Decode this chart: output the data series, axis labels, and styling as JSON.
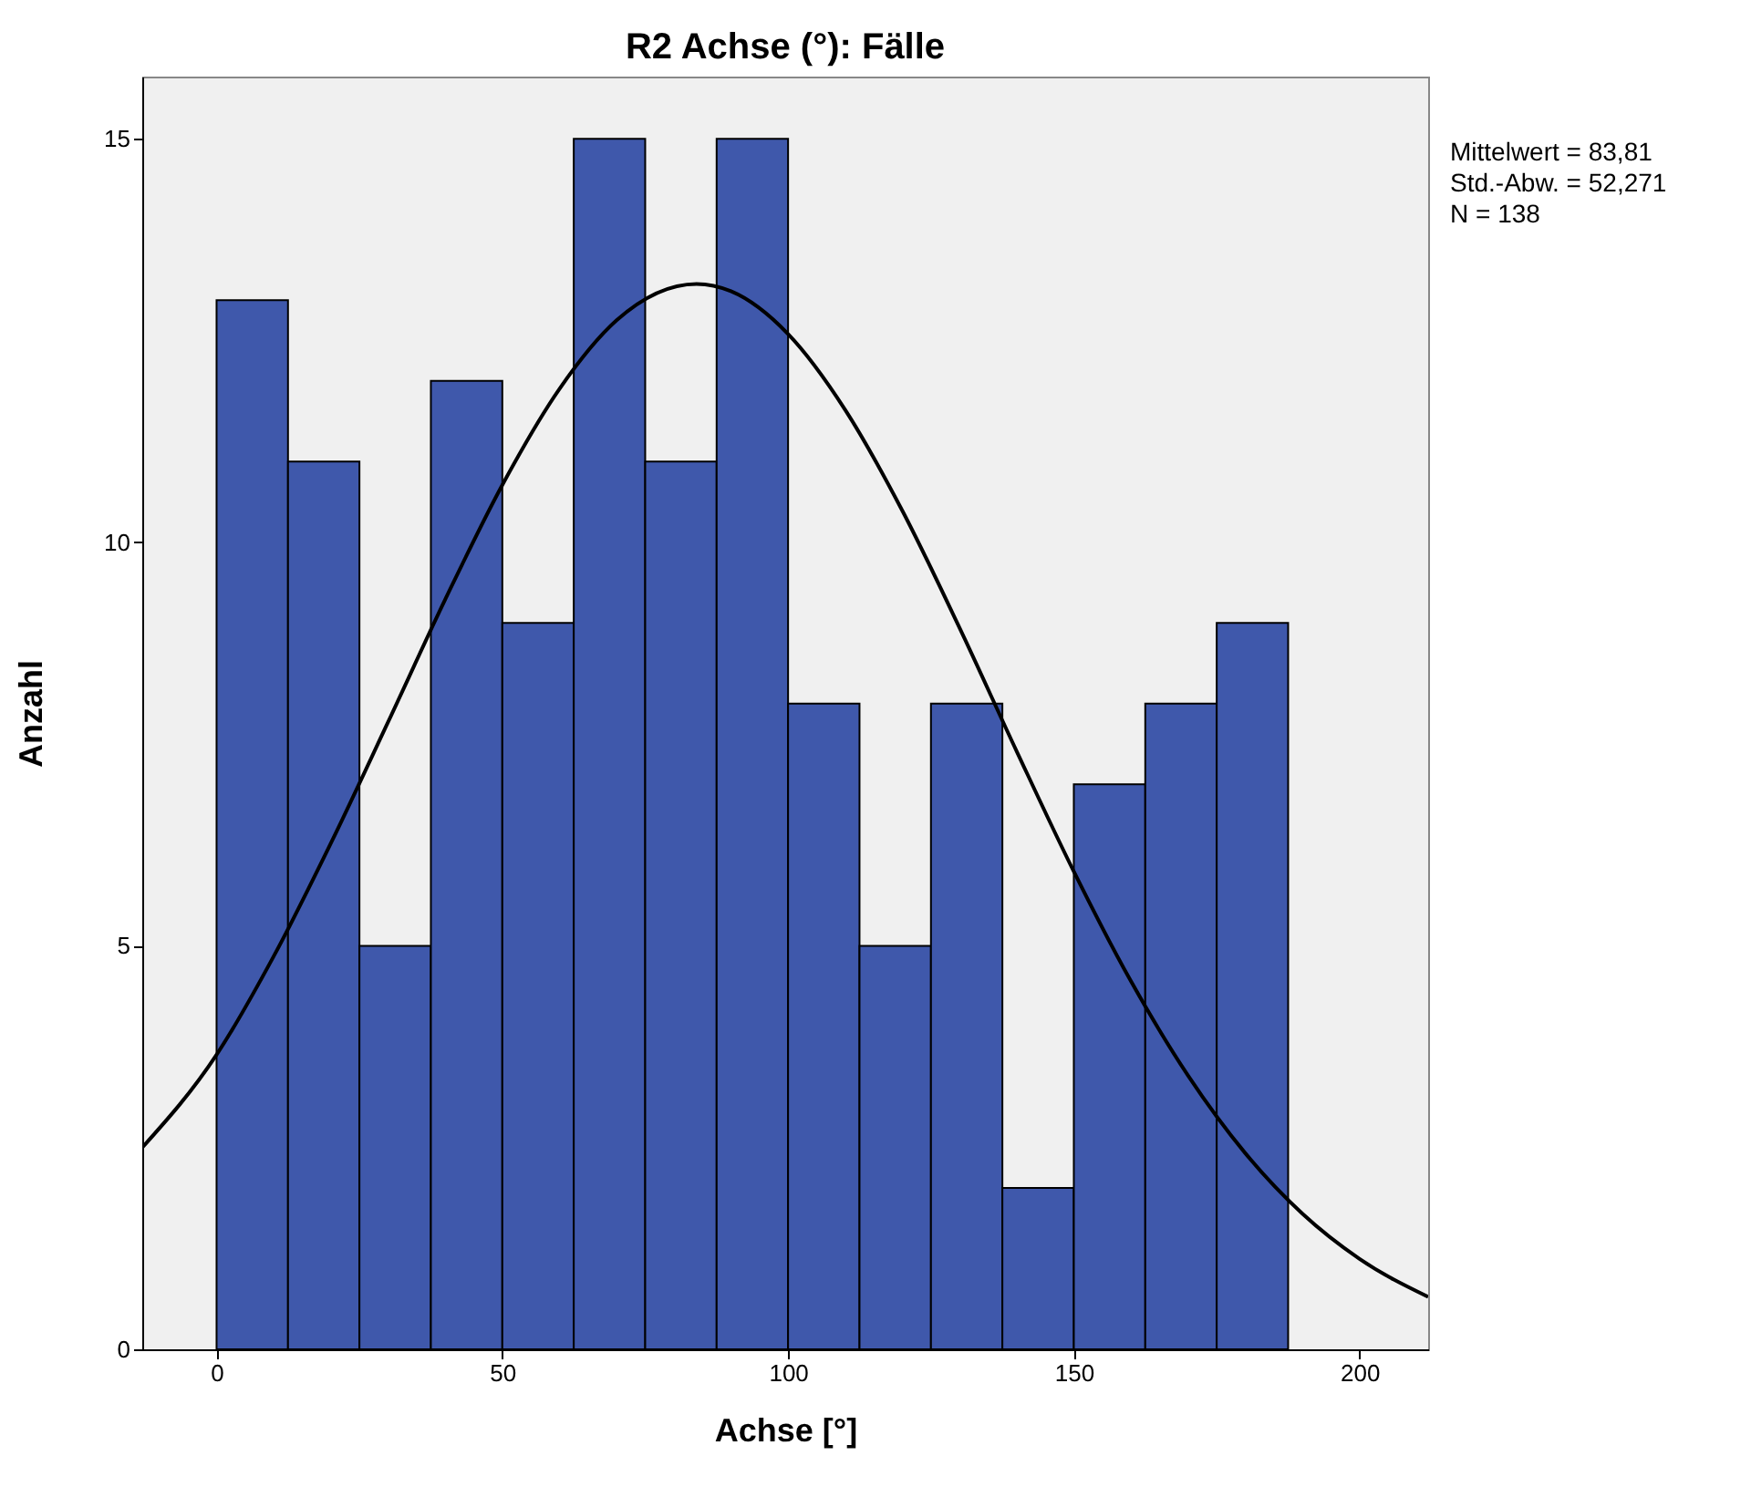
{
  "chart_data": {
    "type": "histogram",
    "title": "R2 Achse (°): Fälle",
    "xlabel": "Achse [°]",
    "ylabel": "Anzahl",
    "bins": [
      0,
      12.5,
      25,
      37.5,
      50,
      62.5,
      75,
      87.5,
      100,
      112.5,
      125,
      137.5,
      150,
      162.5,
      175,
      187.5
    ],
    "values": [
      13,
      11,
      5,
      12,
      9,
      15,
      11,
      15,
      8,
      5,
      8,
      2,
      7,
      8,
      9
    ],
    "color": "#3f58ab",
    "series": [
      {
        "type": "line",
        "color": "#000000",
        "x": [
          -13,
          0,
          10,
          20,
          30,
          40,
          50,
          60,
          70,
          84,
          90,
          100,
          110,
          120,
          130,
          140,
          150,
          160,
          170,
          180,
          190,
          200,
          212
        ],
        "values": [
          2.5,
          3.65,
          4.87,
          6.27,
          7.77,
          9.29,
          10.71,
          11.9,
          12.75,
          13.2,
          13.11,
          12.58,
          11.64,
          10.39,
          8.94,
          7.41,
          5.92,
          4.56,
          3.39,
          2.43,
          1.68,
          1.12,
          0.65
        ]
      }
    ],
    "xlim": [
      -13,
      212
    ],
    "ylim": [
      0,
      15.77
    ],
    "xticks": [
      0,
      50,
      100,
      150,
      200
    ],
    "yticks": [
      0,
      5,
      10,
      15
    ],
    "grid": false,
    "annotations": [
      "Mittelwert = 83,81",
      "Std.-Abw. = 52,271",
      "N = 138"
    ]
  }
}
